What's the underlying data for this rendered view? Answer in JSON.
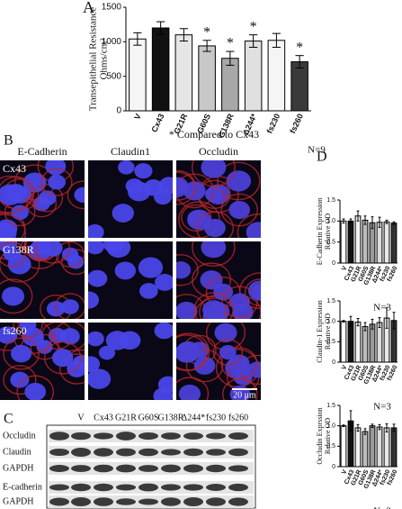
{
  "panels": {
    "a": "A",
    "b": "B",
    "c": "C",
    "d": "D"
  },
  "micrographs": {
    "columns": [
      "E-Cadherin",
      "Claudin1",
      "Occludin"
    ],
    "rows": [
      "Cx43",
      "G138R",
      "fs260"
    ],
    "scale_bar": "20 μm"
  },
  "blots": {
    "lanes": [
      "V",
      "Cx43",
      "G21R",
      "G60S",
      "G138R",
      "Δ244*",
      "fs230",
      "fs260"
    ],
    "rows": [
      "Occludin",
      "Claudin",
      "GAPDH",
      "E-cadherin",
      "GAPDH"
    ]
  },
  "chart_data": [
    {
      "type": "bar",
      "ylabel": [
        "Transepithelial Resistance",
        "Ohms/cm²"
      ],
      "categories": [
        "V",
        "Cx43",
        "G21R",
        "G60S",
        "G138R",
        "Δ244*",
        "fs230",
        "fs260"
      ],
      "values": [
        1040,
        1200,
        1100,
        940,
        760,
        1010,
        1020,
        710
      ],
      "errors": [
        90,
        90,
        90,
        80,
        100,
        90,
        100,
        90
      ],
      "colors": [
        "#f5f5f5",
        "#111111",
        "#e6e6e6",
        "#c8c8c8",
        "#a8a8a8",
        "#e0e0e0",
        "#f5f5f5",
        "#3a3a3a"
      ],
      "ylim": [
        0,
        1500
      ],
      "yticks": [
        0,
        500,
        1000,
        1500
      ],
      "annotations": [
        {
          "category": "G60S",
          "text": "*"
        },
        {
          "category": "G138R",
          "text": "*"
        },
        {
          "category": "Δ244*",
          "text": "*"
        },
        {
          "category": "fs260",
          "text": "*"
        }
      ],
      "note": "* Compared to Cx43",
      "n": "N=9"
    },
    {
      "type": "bar",
      "ylabel": [
        "E-Cadherin Expression",
        "Relative OD"
      ],
      "categories": [
        "V",
        "Cx43",
        "G21R",
        "G60S",
        "G138R",
        "Δ244*",
        "fs230",
        "fs260"
      ],
      "values": [
        1.0,
        1.0,
        1.12,
        1.02,
        0.96,
        0.97,
        0.98,
        0.95
      ],
      "errors": [
        0.05,
        0.05,
        0.12,
        0.1,
        0.14,
        0.12,
        0.04,
        0.03
      ],
      "colors": [
        "#ffffff",
        "#111111",
        "#f2f2f2",
        "#bbbbbb",
        "#999999",
        "#dddddd",
        "#e8e8e8",
        "#333333"
      ],
      "ylim": [
        0,
        1.5
      ],
      "yticks": [
        0,
        0.5,
        {
          "value": 1.0,
          "label": "1.0"
        },
        1.5
      ],
      "n": "N=3"
    },
    {
      "type": "bar",
      "ylabel": [
        "Claudin-1 Expression",
        "Relative OD"
      ],
      "categories": [
        "V",
        "Cx43",
        "G21R",
        "G60S",
        "G138R",
        "Δ244*",
        "fs230",
        "fs260"
      ],
      "values": [
        1.0,
        1.0,
        0.98,
        0.87,
        0.93,
        0.97,
        1.08,
        1.02
      ],
      "errors": [
        0.02,
        0.12,
        0.09,
        0.1,
        0.12,
        0.12,
        0.25,
        0.2
      ],
      "colors": [
        "#ffffff",
        "#111111",
        "#f2f2f2",
        "#bbbbbb",
        "#999999",
        "#dddddd",
        "#e8e8e8",
        "#333333"
      ],
      "ylim": [
        0,
        1.5
      ],
      "yticks": [
        0,
        0.5,
        {
          "value": 1.0,
          "label": "1.0"
        },
        1.5
      ],
      "n": "N=3"
    },
    {
      "type": "bar",
      "ylabel": [
        "Occludin Exprssion",
        "Relative OD"
      ],
      "categories": [
        "V",
        "Cx43",
        "G21R",
        "G60S",
        "G138R",
        "Δ244*",
        "fs230",
        "fs260"
      ],
      "values": [
        1.0,
        1.12,
        0.95,
        0.86,
        1.0,
        0.97,
        0.95,
        0.95
      ],
      "errors": [
        0.02,
        0.25,
        0.08,
        0.07,
        0.04,
        0.06,
        0.1,
        0.09
      ],
      "colors": [
        "#ffffff",
        "#111111",
        "#f2f2f2",
        "#bbbbbb",
        "#999999",
        "#dddddd",
        "#e8e8e8",
        "#333333"
      ],
      "ylim": [
        0,
        1.5
      ],
      "yticks": [
        0,
        0.5,
        {
          "value": 1.0,
          "label": "1.0"
        },
        1.5
      ],
      "n": "N=3"
    }
  ]
}
